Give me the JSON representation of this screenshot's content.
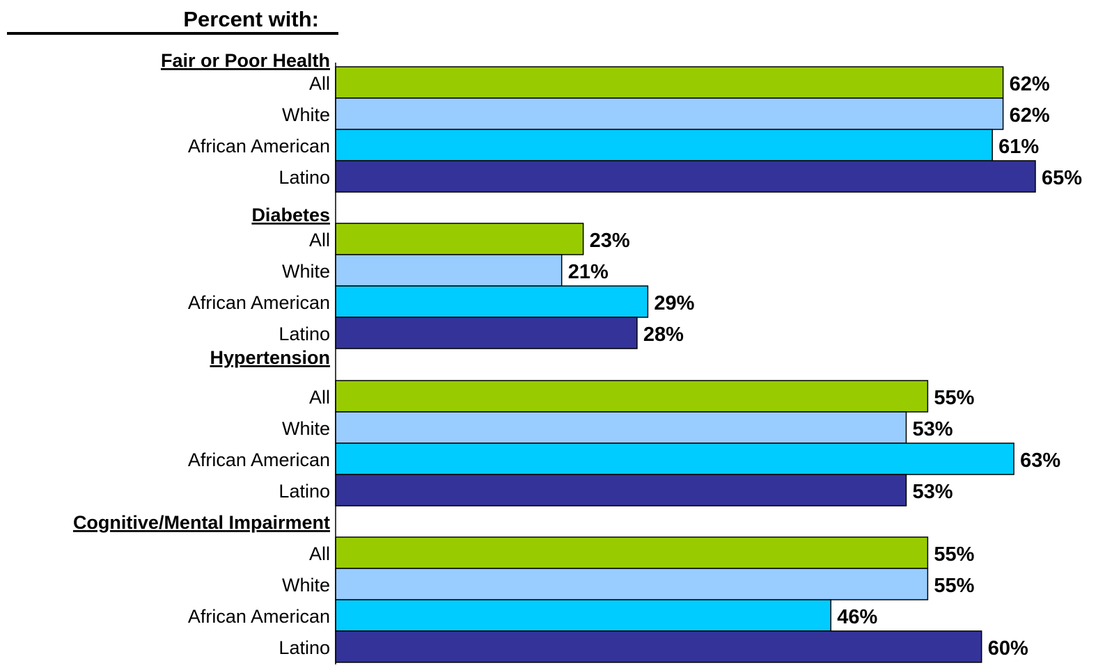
{
  "heading": "Percent with:",
  "chart_data": {
    "type": "bar",
    "orientation": "horizontal",
    "value_suffix": "%",
    "xlim": [
      0,
      65
    ],
    "grid": false,
    "legend": "none",
    "categories": [
      "All",
      "White",
      "African American",
      "Latino"
    ],
    "colors": {
      "All": "#99cc00",
      "White": "#99ccff",
      "African American": "#00ccff",
      "Latino": "#333399"
    },
    "groups": [
      {
        "name": "Fair or Poor Health",
        "values": [
          62,
          62,
          61,
          65
        ]
      },
      {
        "name": "Diabetes",
        "values": [
          23,
          21,
          29,
          28
        ]
      },
      {
        "name": "Hypertension",
        "values": [
          55,
          53,
          63,
          53
        ]
      },
      {
        "name": "Cognitive/Mental Impairment",
        "values": [
          55,
          55,
          46,
          60
        ]
      }
    ]
  }
}
